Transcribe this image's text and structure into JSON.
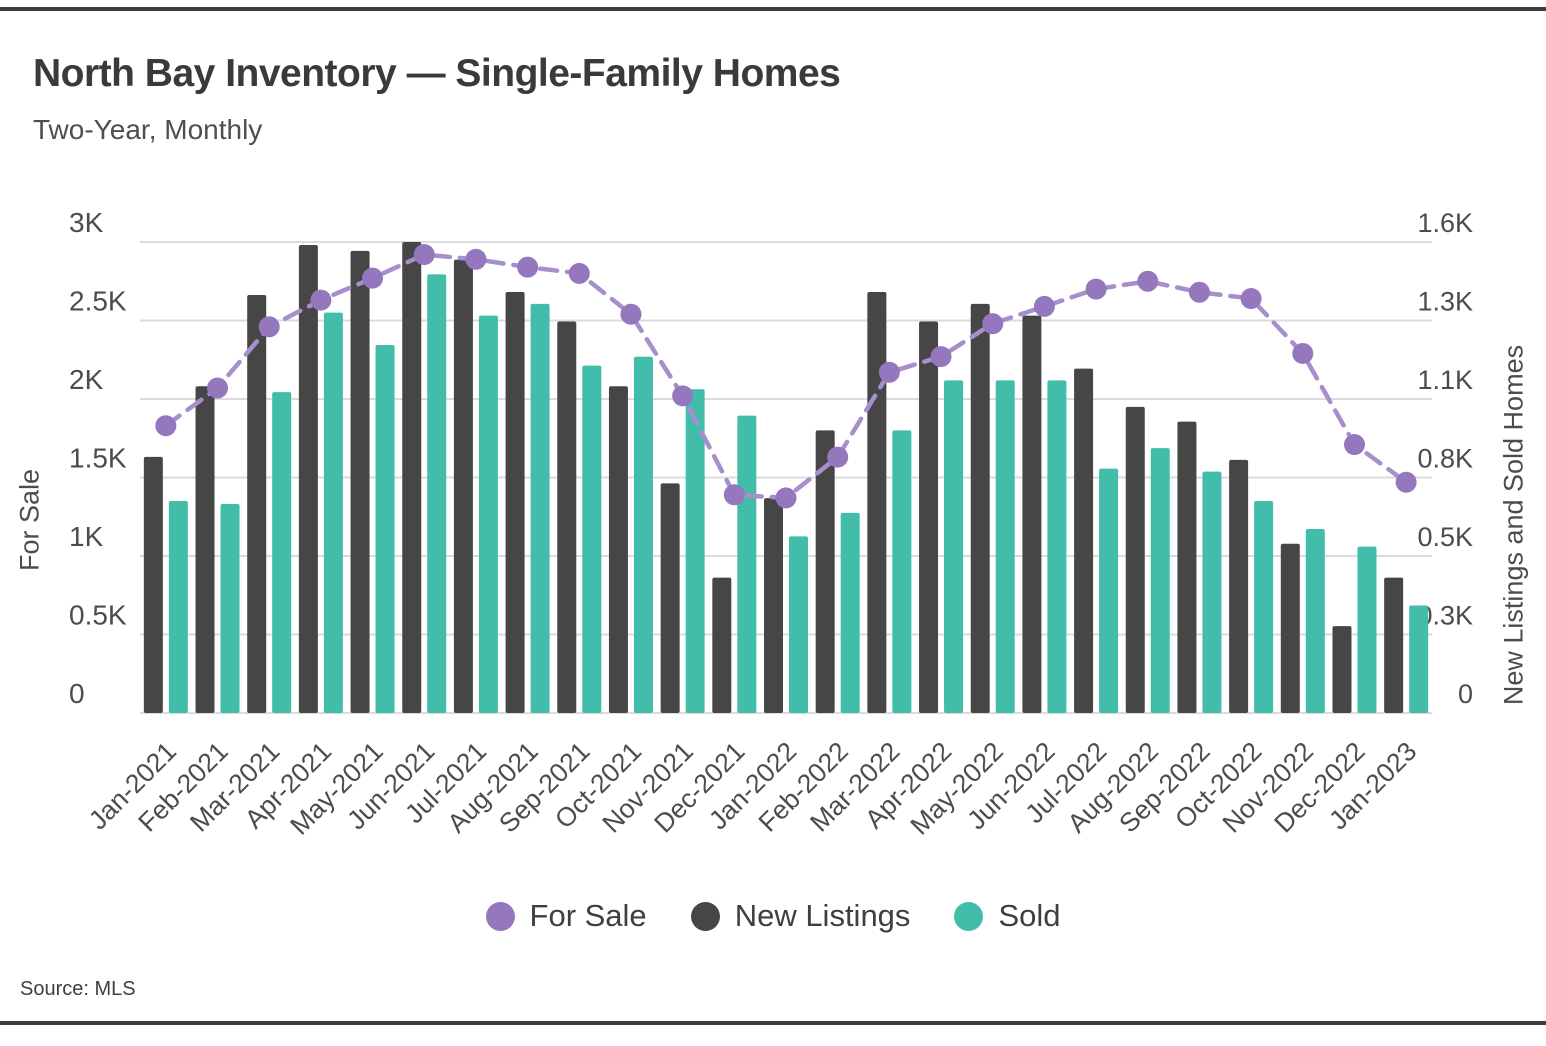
{
  "header": {
    "title": "North Bay Inventory — Single-Family Homes",
    "subtitle": "Two-Year, Monthly"
  },
  "footer": {
    "source": "Source: MLS"
  },
  "legend": {
    "items": [
      {
        "label": "For Sale",
        "color": "#9577be"
      },
      {
        "label": "New Listings",
        "color": "#464646"
      },
      {
        "label": "Sold",
        "color": "#41bda9"
      }
    ]
  },
  "colors": {
    "new_listings_bar": "#464646",
    "sold_bar": "#41bda9",
    "for_sale_line": "#a78ecc",
    "for_sale_dot": "#9577be",
    "gridline": "#dbdbdb",
    "axis_text": "#4c4c4c",
    "border_rule": "#3b3b3b"
  },
  "chart_data": {
    "type": "bar",
    "subtype": "combo dual-axis: grouped bars (right axis) + dashed line with markers (left axis)",
    "title": "North Bay Inventory — Single-Family Homes",
    "subtitle": "Two-Year, Monthly",
    "categories": [
      "Jan-2021",
      "Feb-2021",
      "Mar-2021",
      "Apr-2021",
      "May-2021",
      "Jun-2021",
      "Jul-2021",
      "Aug-2021",
      "Sep-2021",
      "Oct-2021",
      "Nov-2021",
      "Dec-2021",
      "Jan-2022",
      "Feb-2022",
      "Mar-2022",
      "Apr-2022",
      "May-2022",
      "Jun-2022",
      "Jul-2022",
      "Aug-2022",
      "Sep-2022",
      "Oct-2022",
      "Nov-2022",
      "Dec-2022",
      "Jan-2023"
    ],
    "series": [
      {
        "name": "For Sale",
        "type": "line",
        "axis": "left",
        "values": [
          1830,
          2070,
          2460,
          2630,
          2770,
          2920,
          2890,
          2840,
          2800,
          2540,
          2020,
          1390,
          1370,
          1630,
          2170,
          2270,
          2480,
          2590,
          2700,
          2750,
          2680,
          2640,
          2290,
          1710,
          1470
        ]
      },
      {
        "name": "New Listings",
        "type": "bar",
        "axis": "right",
        "values": [
          870,
          1110,
          1420,
          1590,
          1570,
          1600,
          1540,
          1430,
          1330,
          1110,
          780,
          460,
          730,
          960,
          1430,
          1330,
          1390,
          1350,
          1170,
          1040,
          990,
          860,
          575,
          295,
          460
        ]
      },
      {
        "name": "Sold",
        "type": "bar",
        "axis": "right",
        "values": [
          720,
          710,
          1090,
          1360,
          1250,
          1490,
          1350,
          1390,
          1180,
          1210,
          1100,
          1010,
          600,
          680,
          960,
          1130,
          1130,
          1130,
          830,
          900,
          820,
          720,
          625,
          565,
          365
        ]
      }
    ],
    "left_axis": {
      "title": "For Sale",
      "max": 3000,
      "gridline_values": [
        0,
        500,
        1000,
        1500,
        2000,
        2500,
        3000
      ],
      "tick_labels": [
        "0",
        "0.5K",
        "1K",
        "1.5K",
        "2K",
        "2.5K",
        "3K"
      ]
    },
    "right_axis": {
      "title": "New Listings and Sold Homes",
      "max": 1600,
      "tick_labels": [
        "0",
        "0.3K",
        "0.5K",
        "0.8K",
        "1.1K",
        "1.3K",
        "1.6K"
      ]
    },
    "grid": "horizontal gridlines only",
    "legend_position": "bottom center"
  }
}
